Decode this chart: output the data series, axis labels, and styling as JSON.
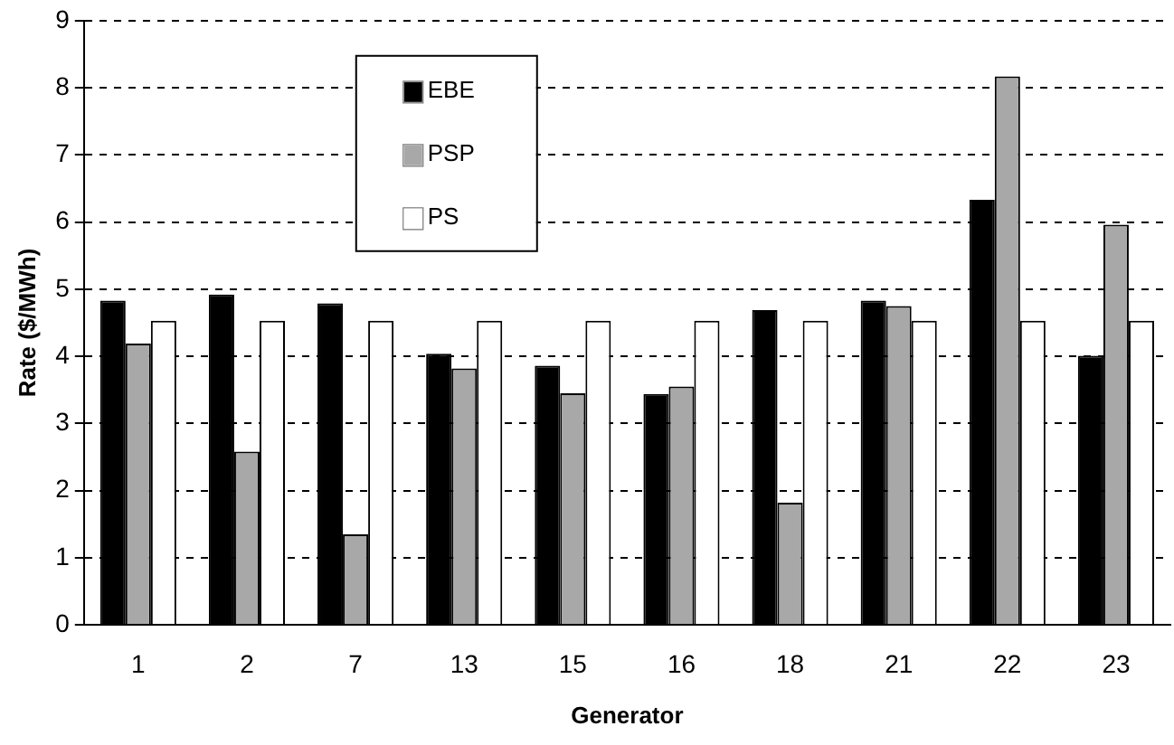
{
  "chart_data": {
    "type": "bar",
    "xlabel": "Generator",
    "ylabel": "Rate ($/MWh)",
    "categories": [
      "1",
      "2",
      "7",
      "13",
      "15",
      "16",
      "18",
      "21",
      "22",
      "23"
    ],
    "series": [
      {
        "name": "EBE",
        "color": "#000000",
        "values": [
          4.83,
          4.92,
          4.79,
          4.04,
          3.86,
          3.44,
          4.69,
          4.83,
          6.33,
          4.01
        ]
      },
      {
        "name": "PSP",
        "color": "#a8a8a8",
        "values": [
          4.19,
          2.58,
          1.35,
          3.82,
          3.45,
          3.55,
          1.82,
          4.75,
          8.17,
          5.96
        ]
      },
      {
        "name": "PS",
        "color": "#ffffff",
        "values": [
          4.53,
          4.53,
          4.53,
          4.53,
          4.53,
          4.53,
          4.53,
          4.53,
          4.53,
          4.53
        ]
      }
    ],
    "ylim": [
      0,
      9
    ],
    "yticks": [
      0,
      1,
      2,
      3,
      4,
      5,
      6,
      7,
      8,
      9
    ],
    "grid": "y",
    "legend": "top left"
  }
}
